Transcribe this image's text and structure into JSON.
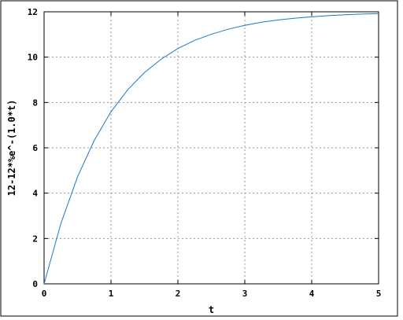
{
  "chart_data": {
    "type": "line",
    "xlabel": "t",
    "ylabel": "12-12*%e^-(1.0*t)",
    "xlim": [
      0,
      5
    ],
    "ylim": [
      0,
      12
    ],
    "x_ticks": [
      0,
      1,
      2,
      3,
      4,
      5
    ],
    "y_ticks": [
      0,
      2,
      4,
      6,
      8,
      10,
      12
    ],
    "x_tick_labels": [
      "0",
      "1",
      "2",
      "3",
      "4",
      "5"
    ],
    "y_tick_labels": [
      "0",
      "2",
      "4",
      "6",
      "8",
      "10",
      "12"
    ],
    "grid": true,
    "legend": "none",
    "series": [
      {
        "color": "#1f77c4",
        "x": [
          0,
          0.25,
          0.5,
          0.75,
          1,
          1.25,
          1.5,
          1.75,
          2,
          2.25,
          2.5,
          2.75,
          3,
          3.25,
          3.5,
          3.75,
          4,
          4.25,
          4.5,
          4.75,
          5
        ],
        "y": [
          0,
          2.65,
          4.72,
          6.33,
          7.59,
          8.56,
          9.32,
          9.91,
          10.38,
          10.74,
          11.01,
          11.23,
          11.4,
          11.54,
          11.64,
          11.72,
          11.78,
          11.83,
          11.87,
          11.9,
          11.92
        ]
      }
    ]
  }
}
